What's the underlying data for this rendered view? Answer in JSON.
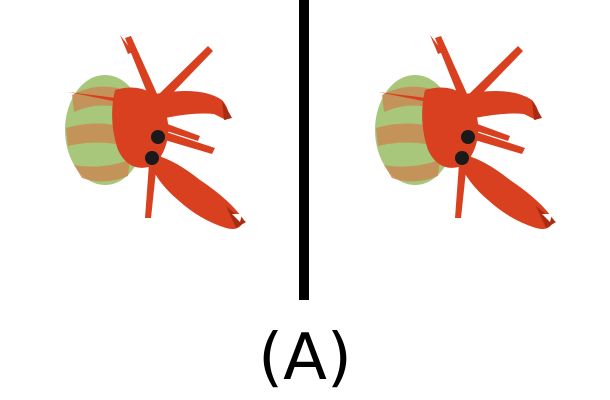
{
  "caption": "(A)",
  "colors": {
    "crab_body": "#d8401f",
    "crab_dark": "#a82c14",
    "shell_green": "#a8c77a",
    "shell_band": "#c98a55",
    "eye": "#1a1a1a",
    "divider": "#000000",
    "background": "#ffffff"
  },
  "panels": [
    {
      "subject": "hermit-crab"
    },
    {
      "subject": "hermit-crab"
    }
  ]
}
